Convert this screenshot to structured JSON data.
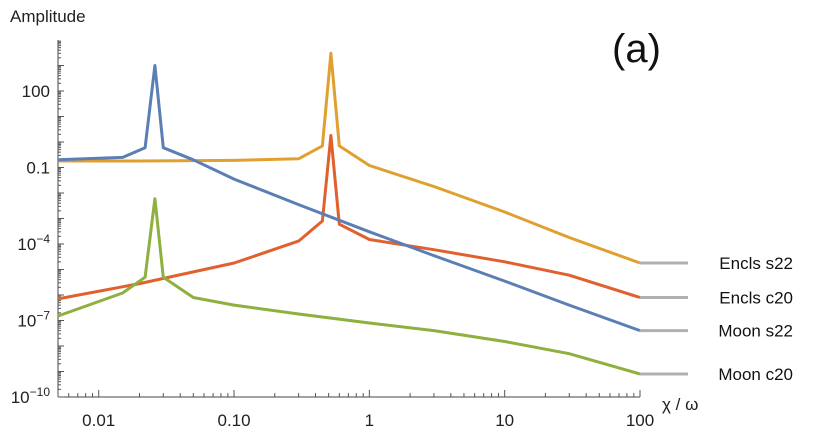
{
  "chart_data": {
    "type": "line",
    "panel_label": "(a)",
    "ylabel": "Amplitude",
    "xlabel": "χ / ω",
    "x_scale": "log",
    "y_scale": "log",
    "xlim": [
      0.005,
      100
    ],
    "ylim": [
      1e-10,
      10000
    ],
    "x_ticks": [
      {
        "value": 0.01,
        "label": "0.01"
      },
      {
        "value": 0.1,
        "label": "0.10"
      },
      {
        "value": 1,
        "label": "1"
      },
      {
        "value": 10,
        "label": "10"
      },
      {
        "value": 100,
        "label": "100"
      }
    ],
    "y_ticks": [
      {
        "value": 100,
        "label": "100"
      },
      {
        "value": 0.1,
        "label": "0.1"
      },
      {
        "value": 0.0001,
        "base": "10",
        "exp": "−4"
      },
      {
        "value": 1e-07,
        "base": "10",
        "exp": "−7"
      },
      {
        "value": 1e-10,
        "base": "10",
        "exp": "−10"
      }
    ],
    "grid": false,
    "series": [
      {
        "name": "Encls s22",
        "color": "#E0A030",
        "points": [
          [
            0.005,
            0.18
          ],
          [
            0.02,
            0.18
          ],
          [
            0.1,
            0.19
          ],
          [
            0.3,
            0.22
          ],
          [
            0.45,
            0.7
          ],
          [
            0.52,
            3000
          ],
          [
            0.6,
            0.7
          ],
          [
            1,
            0.12
          ],
          [
            3,
            0.018
          ],
          [
            10,
            0.0018
          ],
          [
            30,
            0.00018
          ],
          [
            100,
            1.8e-05
          ]
        ]
      },
      {
        "name": "Encls c20",
        "color": "#E0602E",
        "points": [
          [
            0.005,
            7e-07
          ],
          [
            0.02,
            2.8e-06
          ],
          [
            0.1,
            1.8e-05
          ],
          [
            0.3,
            0.00013
          ],
          [
            0.45,
            0.0008
          ],
          [
            0.52,
            1.8
          ],
          [
            0.6,
            0.0006
          ],
          [
            1,
            0.00015
          ],
          [
            3,
            6e-05
          ],
          [
            10,
            2e-05
          ],
          [
            30,
            6e-06
          ],
          [
            100,
            8e-07
          ]
        ]
      },
      {
        "name": "Moon s22",
        "color": "#5B7FB5",
        "points": [
          [
            0.005,
            0.2
          ],
          [
            0.015,
            0.25
          ],
          [
            0.022,
            0.6
          ],
          [
            0.026,
            1000
          ],
          [
            0.03,
            0.6
          ],
          [
            0.05,
            0.2
          ],
          [
            0.1,
            0.035
          ],
          [
            0.3,
            0.0035
          ],
          [
            1,
            0.0003
          ],
          [
            3,
            3.5e-05
          ],
          [
            10,
            3.5e-06
          ],
          [
            30,
            4e-07
          ],
          [
            100,
            4e-08
          ]
        ]
      },
      {
        "name": "Moon c20",
        "color": "#8DB03E",
        "points": [
          [
            0.005,
            1.5e-07
          ],
          [
            0.015,
            1.2e-06
          ],
          [
            0.022,
            5e-06
          ],
          [
            0.026,
            0.006
          ],
          [
            0.03,
            5e-06
          ],
          [
            0.05,
            8e-07
          ],
          [
            0.1,
            4e-07
          ],
          [
            0.3,
            1.8e-07
          ],
          [
            1,
            8e-08
          ],
          [
            3,
            4e-08
          ],
          [
            10,
            1.5e-08
          ],
          [
            30,
            5e-09
          ],
          [
            100,
            8e-10
          ]
        ]
      }
    ],
    "legend": {
      "placement": "right"
    }
  }
}
